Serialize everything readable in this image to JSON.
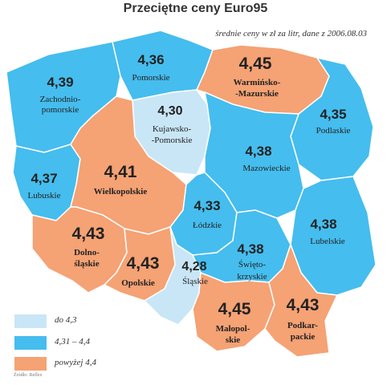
{
  "header": {
    "title": "Przeciętne ceny Euro95",
    "subtitle": "średnie ceny w zł za litr, dane z 2006.08.03"
  },
  "colors": {
    "low": "#c9e6f7",
    "mid": "#45bdee",
    "high": "#f5a274"
  },
  "regions": {
    "zachodniopomorskie": {
      "price": "4,39",
      "name_lines": [
        "Zachodnio-",
        "pomorskie"
      ],
      "tier": "mid"
    },
    "pomorskie": {
      "price": "4,36",
      "name_lines": [
        "Pomorskie"
      ],
      "tier": "mid"
    },
    "warminsko_mazurskie": {
      "price": "4,45",
      "name_lines": [
        "Warmińsko-",
        "-Mazurskie"
      ],
      "tier": "high"
    },
    "kujawsko_pomorskie": {
      "price": "4,30",
      "name_lines": [
        "Kujawsko-",
        "-Pomorskie"
      ],
      "tier": "low"
    },
    "podlaskie": {
      "price": "4,35",
      "name_lines": [
        "Podlaskie"
      ],
      "tier": "mid"
    },
    "lubuskie": {
      "price": "4,37",
      "name_lines": [
        "Lubuskie"
      ],
      "tier": "mid"
    },
    "wielkopolskie": {
      "price": "4,41",
      "name_lines": [
        "Wielkopolskie"
      ],
      "tier": "high"
    },
    "mazowieckie": {
      "price": "4,38",
      "name_lines": [
        "Mazowieckie"
      ],
      "tier": "mid"
    },
    "lodzkie": {
      "price": "4,33",
      "name_lines": [
        "Łódzkie"
      ],
      "tier": "mid"
    },
    "lubelskie": {
      "price": "4,38",
      "name_lines": [
        "Lubelskie"
      ],
      "tier": "mid"
    },
    "dolnoslaskie": {
      "price": "4,43",
      "name_lines": [
        "Dolno-",
        "śląskie"
      ],
      "tier": "high"
    },
    "opolskie": {
      "price": "4,43",
      "name_lines": [
        "Opolskie"
      ],
      "tier": "high"
    },
    "slaskie": {
      "price": "4,28",
      "name_lines": [
        "Śląskie"
      ],
      "tier": "low"
    },
    "swietokrzyskie": {
      "price": "4,38",
      "name_lines": [
        "Święto-",
        "krzyskie"
      ],
      "tier": "mid"
    },
    "malopolskie": {
      "price": "4,45",
      "name_lines": [
        "Małopol-",
        "skie"
      ],
      "tier": "high"
    },
    "podkarpackie": {
      "price": "4,43",
      "name_lines": [
        "Podkar-",
        "packie"
      ],
      "tier": "high"
    }
  },
  "legend": [
    {
      "label": "do 4,3",
      "tier": "low"
    },
    {
      "label": "4,31 – 4,4",
      "tier": "mid"
    },
    {
      "label": "powyżej 4,4",
      "tier": "high"
    }
  ],
  "source": "Źródło: Reflex"
}
